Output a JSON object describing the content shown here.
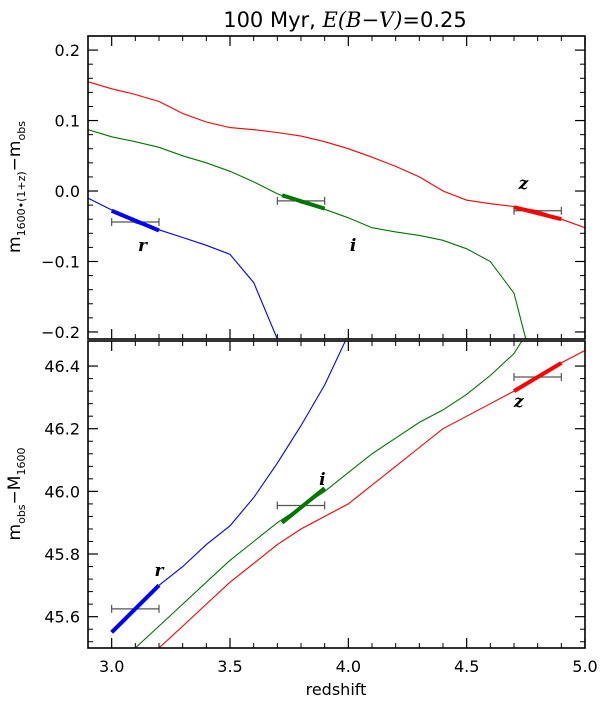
{
  "figure": {
    "title_prefix": "100 Myr, ",
    "title_italic": "E(B−V)",
    "title_suffix": "=0.25",
    "xlabel": "redshift"
  },
  "chart_data": [
    {
      "type": "line",
      "panel": "top",
      "ylabel_main": "m",
      "ylabel_sub": "1600•(1+z)",
      "ylabel_mid": "−m",
      "ylabel_sub2": "obs",
      "xlim": [
        2.9,
        5.0
      ],
      "ylim": [
        -0.21,
        0.22
      ],
      "x_ticks": [
        3.0,
        3.5,
        4.0,
        4.5,
        5.0
      ],
      "y_ticks": [
        -0.2,
        -0.1,
        0.0,
        0.1,
        0.2
      ],
      "y_tick_labels": [
        "−0.2",
        "−0.1",
        "0.0",
        "0.1",
        "0.2"
      ],
      "grid": false,
      "series": [
        {
          "color": "#0000ff",
          "x": [
            2.9,
            3.0,
            3.1,
            3.2,
            3.3,
            3.4,
            3.5,
            3.6,
            3.7
          ],
          "y": [
            -0.01,
            -0.027,
            -0.045,
            -0.055,
            -0.066,
            -0.077,
            -0.09,
            -0.13,
            -0.21
          ]
        },
        {
          "color": "#007700",
          "x": [
            2.9,
            3.0,
            3.1,
            3.2,
            3.3,
            3.4,
            3.5,
            3.6,
            3.7,
            3.8,
            3.9,
            4.0,
            4.1,
            4.2,
            4.3,
            4.4,
            4.5,
            4.6,
            4.7,
            4.75
          ],
          "y": [
            0.087,
            0.077,
            0.07,
            0.062,
            0.05,
            0.04,
            0.028,
            0.013,
            -0.004,
            -0.017,
            -0.026,
            -0.038,
            -0.052,
            -0.058,
            -0.063,
            -0.07,
            -0.082,
            -0.1,
            -0.145,
            -0.21
          ]
        },
        {
          "color": "#ff0000",
          "x": [
            2.9,
            3.0,
            3.1,
            3.2,
            3.3,
            3.4,
            3.5,
            3.6,
            3.7,
            3.8,
            3.9,
            4.0,
            4.1,
            4.2,
            4.3,
            4.4,
            4.5,
            4.6,
            4.7,
            4.8,
            4.9,
            5.0
          ],
          "y": [
            0.155,
            0.145,
            0.137,
            0.127,
            0.11,
            0.098,
            0.09,
            0.087,
            0.083,
            0.078,
            0.07,
            0.06,
            0.048,
            0.035,
            0.02,
            0.0,
            -0.013,
            -0.018,
            -0.022,
            -0.028,
            -0.04,
            -0.052
          ]
        }
      ],
      "bands": [
        {
          "name": "r",
          "color": "#0000ff",
          "x": [
            3.0,
            3.2
          ],
          "y": [
            -0.028,
            -0.056
          ],
          "err_x": [
            3.0,
            3.2
          ],
          "err_y": -0.044,
          "label_x": 3.13,
          "label_y": -0.085
        },
        {
          "name": "i",
          "color": "#007700",
          "x": [
            3.72,
            3.9
          ],
          "y": [
            -0.006,
            -0.025
          ],
          "err_x": [
            3.7,
            3.9
          ],
          "err_y": -0.014,
          "label_x": 4.02,
          "label_y": -0.085
        },
        {
          "name": "z",
          "color": "#ff0000",
          "x": [
            4.7,
            4.9
          ],
          "y": [
            -0.023,
            -0.04
          ],
          "err_x": [
            4.7,
            4.9
          ],
          "err_y": -0.028,
          "label_x": 4.74,
          "label_y": 0.003
        }
      ]
    },
    {
      "type": "line",
      "panel": "bottom",
      "ylabel_main": "m",
      "ylabel_sub": "obs",
      "ylabel_mid": "−M",
      "ylabel_sub2": "1600",
      "xlim": [
        2.9,
        5.0
      ],
      "ylim": [
        45.5,
        46.48
      ],
      "x_ticks": [
        3.0,
        3.5,
        4.0,
        4.5,
        5.0
      ],
      "x_tick_labels": [
        "3.0",
        "3.5",
        "4.0",
        "4.5",
        "5.0"
      ],
      "y_ticks": [
        45.6,
        45.8,
        46.0,
        46.2,
        46.4
      ],
      "y_tick_labels": [
        "45.6",
        "45.8",
        "46.0",
        "46.2",
        "46.4"
      ],
      "grid": false,
      "series": [
        {
          "color": "#0000ff",
          "x": [
            3.0,
            3.1,
            3.2,
            3.3,
            3.4,
            3.5,
            3.6,
            3.7,
            3.8,
            3.9,
            4.0
          ],
          "y": [
            45.55,
            45.63,
            45.7,
            45.76,
            45.83,
            45.89,
            45.98,
            46.09,
            46.21,
            46.34,
            46.5
          ]
        },
        {
          "color": "#007700",
          "x": [
            3.1,
            3.2,
            3.3,
            3.4,
            3.5,
            3.6,
            3.7,
            3.8,
            3.9,
            4.0,
            4.1,
            4.2,
            4.3,
            4.4,
            4.5,
            4.6,
            4.7,
            4.75
          ],
          "y": [
            45.5,
            45.57,
            45.64,
            45.71,
            45.78,
            45.84,
            45.9,
            45.95,
            46.0,
            46.06,
            46.12,
            46.17,
            46.22,
            46.26,
            46.31,
            46.37,
            46.44,
            46.5
          ]
        },
        {
          "color": "#ff0000",
          "x": [
            3.2,
            3.3,
            3.4,
            3.5,
            3.6,
            3.7,
            3.8,
            3.9,
            4.0,
            4.1,
            4.2,
            4.3,
            4.4,
            4.5,
            4.6,
            4.7,
            4.8,
            4.9,
            5.0
          ],
          "y": [
            45.5,
            45.57,
            45.64,
            45.71,
            45.77,
            45.83,
            45.88,
            45.92,
            45.96,
            46.02,
            46.08,
            46.14,
            46.2,
            46.24,
            46.28,
            46.32,
            46.36,
            46.41,
            46.45
          ]
        }
      ],
      "bands": [
        {
          "name": "r",
          "color": "#0000ff",
          "x": [
            3.0,
            3.2
          ],
          "y": [
            45.55,
            45.7
          ],
          "err_x": [
            3.0,
            3.2
          ],
          "err_y": 45.625,
          "label_x": 3.2,
          "label_y": 45.73
        },
        {
          "name": "i",
          "color": "#007700",
          "x": [
            3.72,
            3.9
          ],
          "y": [
            45.9,
            46.01
          ],
          "err_x": [
            3.7,
            3.9
          ],
          "err_y": 45.955,
          "label_x": 3.89,
          "label_y": 46.02
        },
        {
          "name": "z",
          "color": "#ff0000",
          "x": [
            4.7,
            4.9
          ],
          "y": [
            46.32,
            46.41
          ],
          "err_x": [
            4.7,
            4.9
          ],
          "err_y": 46.365,
          "label_x": 4.72,
          "label_y": 46.27
        }
      ]
    }
  ]
}
